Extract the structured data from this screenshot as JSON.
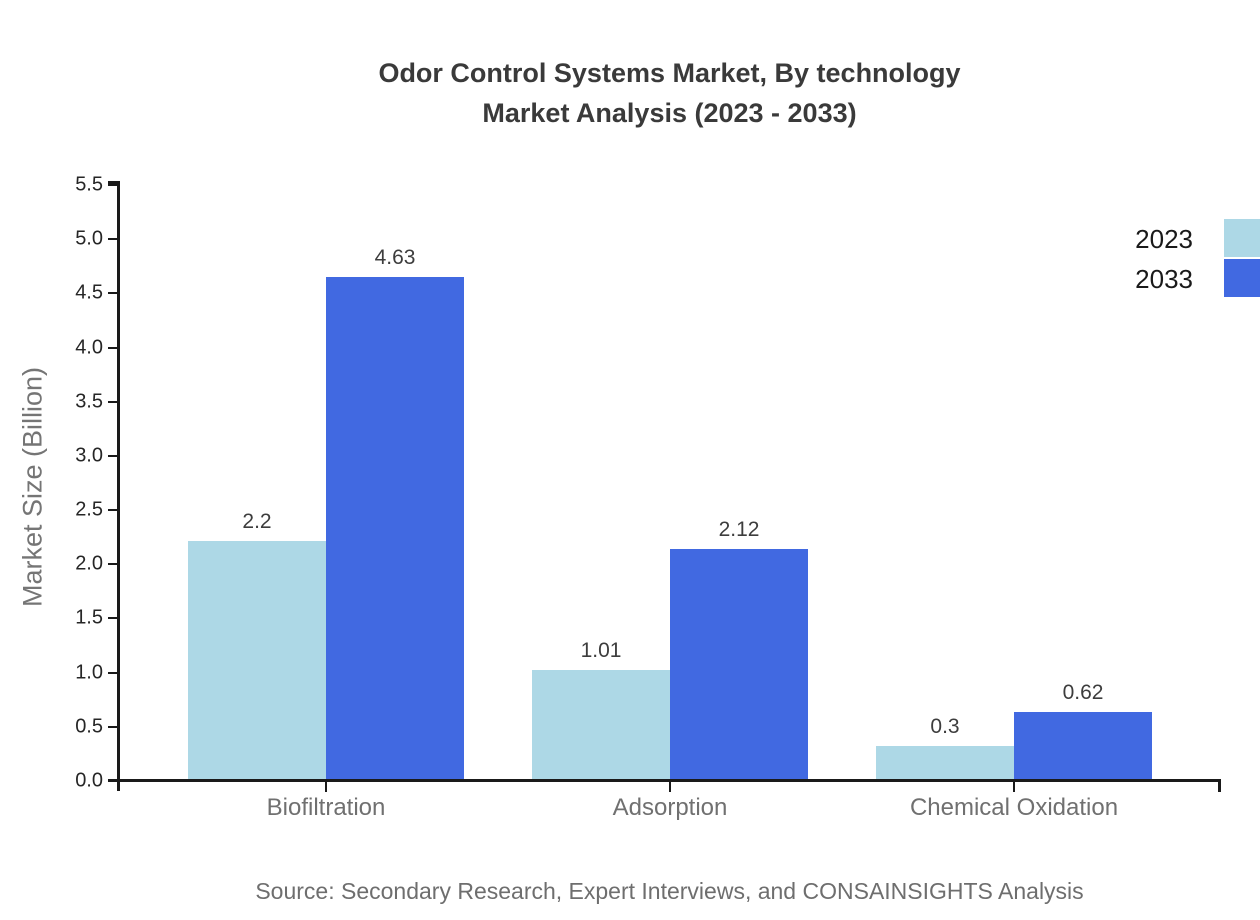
{
  "title": {
    "line1": "Odor Control Systems Market, By technology",
    "line2": "Market Analysis (2023 - 2033)"
  },
  "source": "Source: Secondary Research, Expert Interviews, and CONSAINSIGHTS Analysis",
  "chart_data": {
    "type": "bar",
    "title": "Odor Control Systems Market, By technology Market Analysis (2023 - 2033)",
    "categories": [
      "Biofiltration",
      "Adsorption",
      "Chemical Oxidation"
    ],
    "series": [
      {
        "name": "2023",
        "color": "#ADD8E6",
        "values": [
          2.2,
          1.01,
          0.3
        ],
        "labels": [
          "2.2",
          "1.01",
          "0.3"
        ]
      },
      {
        "name": "2033",
        "color": "#4169E1",
        "values": [
          4.63,
          2.12,
          0.62
        ],
        "labels": [
          "4.63",
          "2.12",
          "0.62"
        ]
      }
    ],
    "xlabel": "",
    "ylabel": "Market Size (Billion)",
    "ylim": [
      0,
      5.5
    ],
    "ytick_labels": [
      "0.0",
      "0.5",
      "1.0",
      "1.5",
      "2.0",
      "2.5",
      "3.0",
      "3.5",
      "4.0",
      "4.5",
      "5.0",
      "5.5"
    ],
    "grid": false,
    "legend_position": "top-right",
    "colors": {
      "axis": "#1a1a1a",
      "tick_label": "#262626",
      "value_label": "#3d3d3d",
      "category_label": "#707070",
      "title_text": "#3a3a3a",
      "muted_text": "#6e6e6e",
      "background": "#ffffff"
    }
  }
}
